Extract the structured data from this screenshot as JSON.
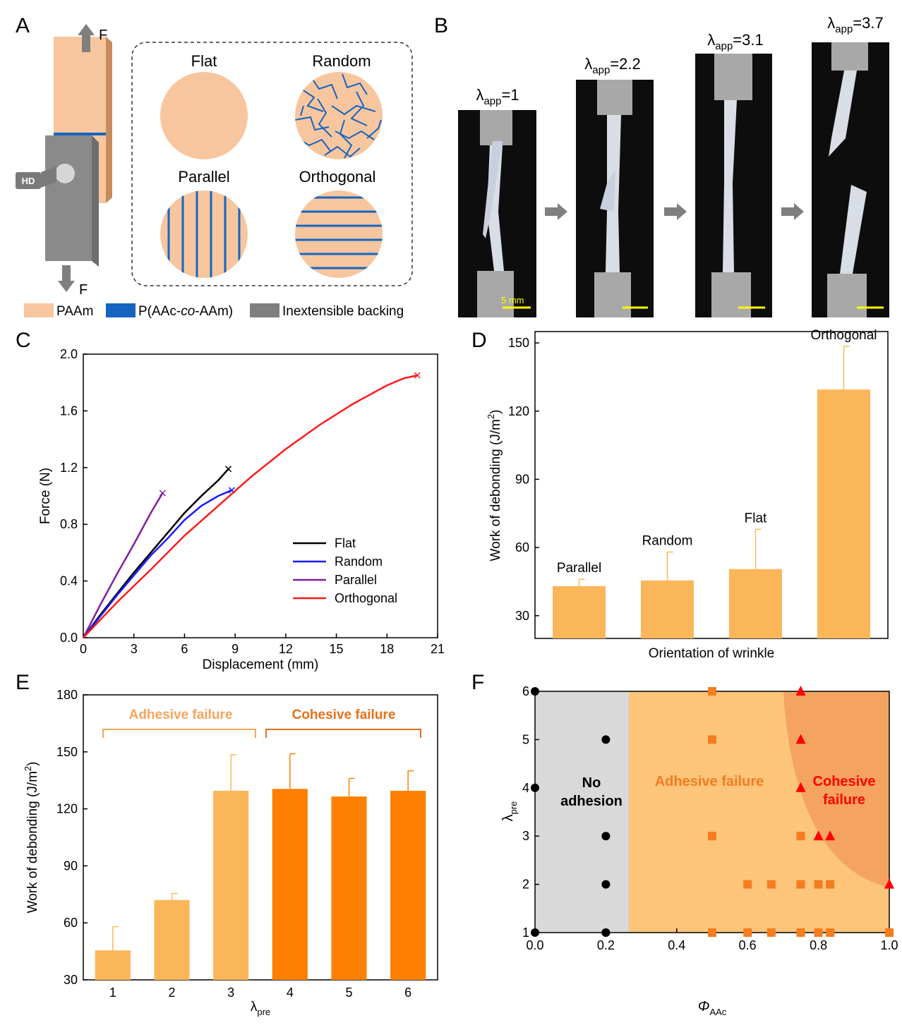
{
  "panel_labels": [
    "A",
    "B",
    "C",
    "D",
    "E",
    "F"
  ],
  "panelA": {
    "force_label": "F",
    "camera_label": "HD",
    "patterns": [
      "Flat",
      "Random",
      "Parallel",
      "Orthogonal"
    ],
    "legend": [
      {
        "label": "PAAm",
        "color": "#f5c59e"
      },
      {
        "label_pre": "P(AAc-",
        "label_italic": "co",
        "label_post": "-AAm)",
        "color": "#1565c0"
      },
      {
        "label": "Inextensible backing",
        "color": "#7f7f7f"
      }
    ]
  },
  "panelB": {
    "frames": [
      {
        "symbol": "λ",
        "sub": "app",
        "value": "=1"
      },
      {
        "symbol": "λ",
        "sub": "app",
        "value": "=2.2"
      },
      {
        "symbol": "λ",
        "sub": "app",
        "value": "=3.1"
      },
      {
        "symbol": "λ",
        "sub": "app",
        "value": "=3.7"
      }
    ],
    "scale_bar": "5 mm"
  },
  "colors": {
    "flat": "#000000",
    "random": "#1a1aff",
    "parallel": "#7f1f9f",
    "orthogonal": "#ff1a1a",
    "bar_light": "#fbb65a",
    "bar_dark": "#ff8000",
    "adhesive_zone": "#fcc57a",
    "cohesive_zone": "#f4a460",
    "no_adhesion_zone": "#d9d9d9",
    "adhesive_text": "#f59a3c",
    "cohesive_text": "#ff0000"
  },
  "chart_data": [
    {
      "id": "C",
      "type": "line",
      "xlabel": "Displacement (mm)",
      "ylabel": "Force (N)",
      "xlim": [
        0,
        21
      ],
      "ylim": [
        0,
        2.0
      ],
      "xticks": [
        "0",
        "3",
        "6",
        "9",
        "12",
        "15",
        "18",
        "21"
      ],
      "yticks": [
        "0.0",
        "0.4",
        "0.8",
        "1.2",
        "1.6",
        "2.0"
      ],
      "legend_position": "lower-right",
      "series": [
        {
          "name": "Flat",
          "x": [
            0,
            1,
            2,
            3,
            4,
            5,
            6,
            7,
            8,
            8.6
          ],
          "y": [
            0,
            0.16,
            0.31,
            0.46,
            0.6,
            0.74,
            0.88,
            1.0,
            1.11,
            1.19
          ]
        },
        {
          "name": "Random",
          "x": [
            0,
            1,
            2,
            3,
            4,
            5,
            6,
            7,
            8,
            8.8
          ],
          "y": [
            0,
            0.15,
            0.3,
            0.44,
            0.58,
            0.7,
            0.83,
            0.93,
            1.0,
            1.04
          ]
        },
        {
          "name": "Parallel",
          "x": [
            0,
            1,
            2,
            3,
            4,
            4.7
          ],
          "y": [
            0,
            0.23,
            0.45,
            0.66,
            0.88,
            1.02
          ]
        },
        {
          "name": "Orthogonal",
          "x": [
            0,
            2,
            4,
            6,
            8,
            10,
            12,
            14,
            16,
            18,
            19,
            19.8
          ],
          "y": [
            0,
            0.25,
            0.48,
            0.72,
            0.93,
            1.14,
            1.33,
            1.5,
            1.65,
            1.78,
            1.83,
            1.85
          ]
        }
      ]
    },
    {
      "id": "D",
      "type": "bar",
      "xlabel": "Orientation of wrinkle",
      "ylabel_main": "Work of debonding (J/m",
      "ylabel_sup": "2",
      "ylabel_end": ")",
      "ylim": [
        20,
        155
      ],
      "yticks": [
        "30",
        "60",
        "90",
        "120",
        "150"
      ],
      "categories": [
        "Parallel",
        "Random",
        "Flat",
        "Orthogonal"
      ],
      "values": [
        43,
        45.5,
        50.5,
        129.5
      ],
      "errors": [
        3,
        12.5,
        17.5,
        19
      ]
    },
    {
      "id": "E",
      "type": "bar",
      "xlabel_main": "λ",
      "xlabel_sub": "pre",
      "ylabel_main": "Work of debonding (J/m",
      "ylabel_sup": "2",
      "ylabel_end": ")",
      "ylim": [
        30,
        180
      ],
      "yticks": [
        "30",
        "60",
        "90",
        "120",
        "150",
        "180"
      ],
      "categories": [
        "1",
        "2",
        "3",
        "4",
        "5",
        "6"
      ],
      "values": [
        45.5,
        72,
        129.5,
        130.5,
        126.5,
        129.5
      ],
      "errors": [
        12.5,
        3.5,
        19,
        18.5,
        9.5,
        10.5
      ],
      "groups": [
        {
          "label": "Adhesive failure",
          "members": [
            1,
            2,
            3
          ]
        },
        {
          "label": "Cohesive failure",
          "members": [
            4,
            5,
            6
          ]
        }
      ]
    },
    {
      "id": "F",
      "type": "scatter",
      "xlabel_main": "Φ",
      "xlabel_sub": "AAc",
      "ylabel_main": "λ",
      "ylabel_sub": "pre",
      "xlim": [
        0,
        1.0
      ],
      "ylim": [
        1,
        6
      ],
      "xticks": [
        "0.0",
        "0.2",
        "0.4",
        "0.6",
        "0.8",
        "1.0"
      ],
      "yticks": [
        "1",
        "2",
        "3",
        "4",
        "5",
        "6"
      ],
      "regions": [
        {
          "label_lines": [
            "No",
            "adhesion"
          ]
        },
        {
          "label_lines": [
            "Adhesive failure"
          ]
        },
        {
          "label_lines": [
            "Cohesive",
            "failure"
          ]
        }
      ],
      "series": [
        {
          "marker": "circle",
          "x": [
            0,
            0,
            0.2,
            0.2,
            0.2,
            0.2,
            0.2,
            0
          ],
          "y": [
            1,
            4,
            1,
            2,
            3,
            5,
            1,
            6
          ]
        },
        {
          "marker": "square",
          "x": [
            0.5,
            0.5,
            0.5,
            0.5,
            0.6,
            0.6,
            0.667,
            0.667,
            0.75,
            0.75,
            0.75,
            0.8,
            0.8,
            0.833,
            0.833,
            1.0
          ],
          "y": [
            1,
            3,
            5,
            6,
            1,
            2,
            1,
            2,
            1,
            2,
            3,
            1,
            2,
            1,
            2,
            1
          ]
        },
        {
          "marker": "triangle",
          "x": [
            0.75,
            0.75,
            0.75,
            0.8,
            0.833,
            1.0
          ],
          "y": [
            4,
            5,
            6,
            3,
            3,
            2
          ]
        }
      ]
    }
  ]
}
